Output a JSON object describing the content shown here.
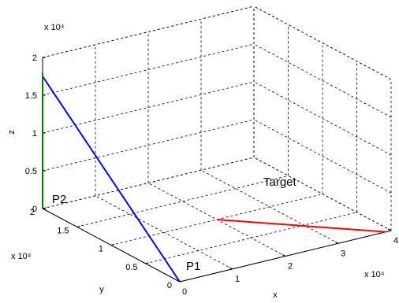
{
  "chart_data": {
    "type": "line3d",
    "grid": true,
    "box": true,
    "xlabel": "x",
    "ylabel": "y",
    "zlabel": "z",
    "x_ticks": [
      "0",
      "1",
      "2",
      "3",
      "4"
    ],
    "y_ticks": [
      "0",
      "0.5",
      "1",
      "1.5",
      "2"
    ],
    "z_ticks": [
      "0",
      "0.5",
      "1",
      "1.5",
      "2"
    ],
    "x_exponent": "x 10⁴",
    "y_exponent": "x 10⁴",
    "z_exponent": "x 10⁴",
    "xlim": [
      0,
      40000
    ],
    "ylim": [
      0,
      20000
    ],
    "zlim": [
      0,
      20000
    ],
    "series": [
      {
        "name": "P1",
        "color": "#0000ff",
        "points": [
          [
            0,
            0,
            0
          ],
          [
            0,
            20000,
            17500
          ]
        ]
      },
      {
        "name": "P2",
        "color": "#008000",
        "points": [
          [
            0,
            20000,
            0
          ],
          [
            0,
            20000,
            18000
          ]
        ]
      },
      {
        "name": "Target",
        "color": "#ff0000",
        "points": [
          [
            20000,
            10000,
            0
          ],
          [
            39000,
            0,
            0
          ]
        ]
      }
    ],
    "annotations": [
      "P1",
      "P2",
      "Target"
    ]
  }
}
